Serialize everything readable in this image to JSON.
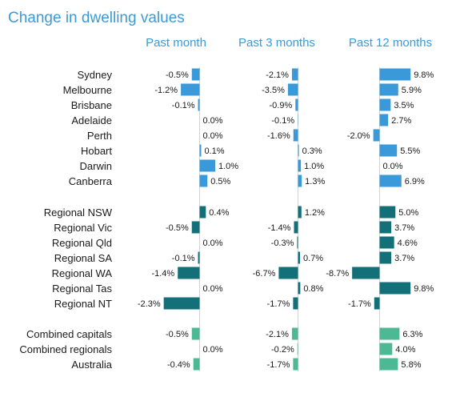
{
  "title": "Change in dwelling values",
  "colors": {
    "title": "#3a9ad9",
    "capitals": "#3a9ad9",
    "regionals": "#137078",
    "combined": "#4cb894",
    "column_header": "#3a9ad9",
    "zero_line": "#c8c8c8"
  },
  "chart_data": {
    "type": "bar",
    "orientation": "horizontal",
    "title": "Change in dwelling values",
    "series": [
      {
        "name": "Past month",
        "values": [
          -0.5,
          -1.2,
          -0.1,
          0.0,
          0.0,
          0.1,
          1.0,
          0.5,
          0.4,
          -0.5,
          0.0,
          -0.1,
          -1.4,
          0.0,
          -2.3,
          -0.5,
          0.0,
          -0.4
        ],
        "labels": [
          "-0.5%",
          "-1.2%",
          "-0.1%",
          "0.0%",
          "0.0%",
          "0.1%",
          "1.0%",
          "0.5%",
          "0.4%",
          "-0.5%",
          "0.0%",
          "-0.1%",
          "-1.4%",
          "0.0%",
          "-2.3%",
          "-0.5%",
          "0.0%",
          "-0.4%"
        ]
      },
      {
        "name": "Past 3 months",
        "values": [
          -2.1,
          -3.5,
          -0.9,
          -0.1,
          -1.6,
          0.3,
          1.0,
          1.3,
          1.2,
          -1.4,
          -0.3,
          0.7,
          -6.7,
          0.8,
          -1.7,
          -2.1,
          -0.2,
          -1.7
        ],
        "labels": [
          "-2.1%",
          "-3.5%",
          "-0.9%",
          "-0.1%",
          "-1.6%",
          "0.3%",
          "1.0%",
          "1.3%",
          "1.2%",
          "-1.4%",
          "-0.3%",
          "0.7%",
          "-6.7%",
          "0.8%",
          "-1.7%",
          "-2.1%",
          "-0.2%",
          "-1.7%"
        ]
      },
      {
        "name": "Past 12 months",
        "values": [
          9.8,
          5.9,
          3.5,
          2.7,
          -2.0,
          5.5,
          0.0,
          6.9,
          5.0,
          3.7,
          4.6,
          3.7,
          -8.7,
          9.8,
          -1.7,
          6.3,
          4.0,
          5.8
        ],
        "labels": [
          "9.8%",
          "5.9%",
          "3.5%",
          "2.7%",
          "-2.0%",
          "5.5%",
          "0.0%",
          "6.9%",
          "5.0%",
          "3.7%",
          "4.6%",
          "3.7%",
          "-8.7%",
          "9.8%",
          "-1.7%",
          "6.3%",
          "4.0%",
          "5.8%"
        ]
      }
    ],
    "categories": [
      "Sydney",
      "Melbourne",
      "Brisbane",
      "Adelaide",
      "Perth",
      "Hobart",
      "Darwin",
      "Canberra",
      "Regional NSW",
      "Regional Vic",
      "Regional Qld",
      "Regional SA",
      "Regional WA",
      "Regional Tas",
      "Regional NT",
      "Combined capitals",
      "Combined regionals",
      "Australia"
    ],
    "groups": [
      "capitals",
      "capitals",
      "capitals",
      "capitals",
      "capitals",
      "capitals",
      "capitals",
      "capitals",
      "regionals",
      "regionals",
      "regionals",
      "regionals",
      "regionals",
      "regionals",
      "regionals",
      "combined",
      "combined",
      "combined"
    ],
    "xlim": [
      [
        -2.3,
        1.0
      ],
      [
        -6.7,
        1.3
      ],
      [
        -8.7,
        9.8
      ]
    ],
    "grid": false,
    "legend": "none"
  }
}
